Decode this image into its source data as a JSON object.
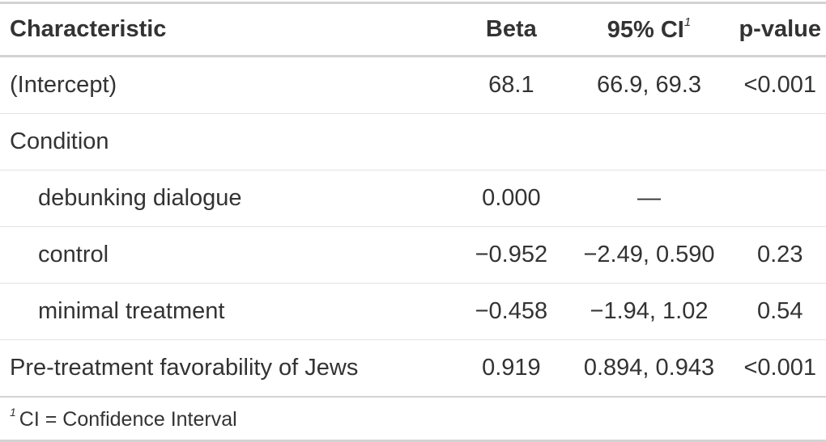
{
  "table": {
    "header": [
      "Characteristic",
      "Beta",
      "95% CI",
      "p-value"
    ],
    "header_note_mark": "1",
    "rows": [
      [
        "(Intercept)",
        "68.1",
        "66.9, 69.3",
        "<0.001"
      ],
      [
        "Condition",
        null,
        null,
        null
      ],
      [
        "debunking dialogue",
        "0.000",
        "—",
        null
      ],
      [
        "control",
        "−0.952",
        "−2.49, 0.590",
        "0.23"
      ],
      [
        "minimal treatment",
        "−0.458",
        "−1.94, 1.02",
        "0.54"
      ],
      [
        "Pre-treatment favorability of Jews",
        "0.919",
        "0.894, 0.943",
        "<0.001"
      ]
    ],
    "footnote": {
      "mark": "1",
      "text": "CI = Confidence Interval"
    }
  }
}
